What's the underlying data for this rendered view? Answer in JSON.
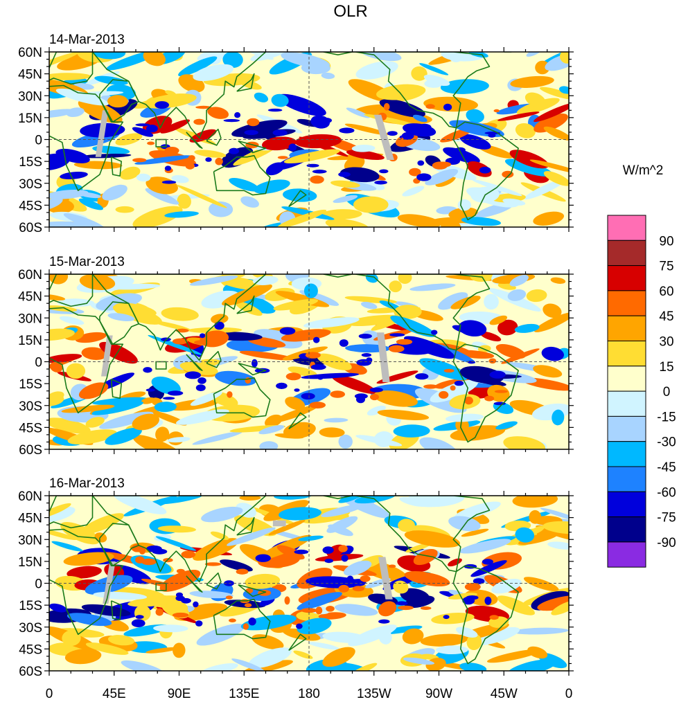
{
  "title": "OLR",
  "panels": [
    {
      "date": "14-Mar-2013"
    },
    {
      "date": "15-Mar-2013"
    },
    {
      "date": "16-Mar-2013"
    }
  ],
  "lat_labels": [
    "60N",
    "45N",
    "30N",
    "15N",
    "0",
    "15S",
    "30S",
    "45S",
    "60S"
  ],
  "lon_labels": [
    "0",
    "45E",
    "90E",
    "135E",
    "180",
    "135W",
    "90W",
    "45W",
    "0"
  ],
  "colorbar": {
    "units": "W/m^2",
    "levels": [
      "90",
      "75",
      "60",
      "45",
      "30",
      "15",
      "0",
      "-15",
      "-30",
      "-45",
      "-60",
      "-75",
      "-90"
    ],
    "colors": [
      "#ff6eb4",
      "#a52a2a",
      "#d70000",
      "#ff6a00",
      "#ffa500",
      "#ffdd33",
      "#ffffcc",
      "#d0f4ff",
      "#a8d4ff",
      "#00b8ff",
      "#1e82ff",
      "#0000dc",
      "#00008c",
      "#8a2be2"
    ]
  }
}
